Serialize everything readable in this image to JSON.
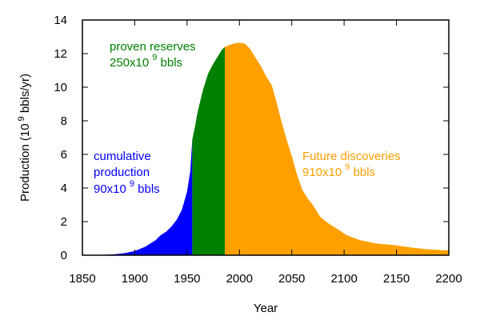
{
  "chart_data": {
    "type": "area",
    "xlabel": "Year",
    "ylabel_prefix": "Production (10",
    "ylabel_sup": "9",
    "ylabel_suffix": " bbls/yr)",
    "xlim": [
      1850,
      2200
    ],
    "ylim": [
      0,
      14
    ],
    "xticks": [
      1850,
      1900,
      1950,
      2000,
      2050,
      2100,
      2150,
      2200
    ],
    "yticks": [
      0,
      2,
      4,
      6,
      8,
      10,
      12,
      14
    ],
    "grid": false,
    "curve": {
      "x": [
        1850,
        1860,
        1870,
        1880,
        1890,
        1900,
        1910,
        1920,
        1925,
        1930,
        1935,
        1940,
        1945,
        1950,
        1953,
        1955,
        1958,
        1960,
        1965,
        1970,
        1975,
        1980,
        1983,
        1986,
        1990,
        1995,
        2000,
        2005,
        2010,
        2015,
        2021,
        2025,
        2031,
        2035,
        2040,
        2045,
        2050,
        2055,
        2060,
        2065,
        2070,
        2077,
        2085,
        2095,
        2102,
        2115,
        2130,
        2148,
        2165,
        2180,
        2200
      ],
      "y": [
        0,
        0,
        0.02,
        0.05,
        0.12,
        0.25,
        0.5,
        0.9,
        1.2,
        1.4,
        1.7,
        2.1,
        2.7,
        3.8,
        5.0,
        6.9,
        7.8,
        8.5,
        9.8,
        10.8,
        11.4,
        11.9,
        12.2,
        12.4,
        12.5,
        12.6,
        12.65,
        12.6,
        12.3,
        11.8,
        11.2,
        10.7,
        10.1,
        9.2,
        8.0,
        6.9,
        5.9,
        4.8,
        3.9,
        3.4,
        3.0,
        2.3,
        1.9,
        1.5,
        1.2,
        0.9,
        0.7,
        0.6,
        0.45,
        0.35,
        0.28
      ]
    },
    "regions": [
      {
        "name": "cumulative production",
        "from": 1850,
        "to": 1955,
        "color": "#0000ff",
        "label_lines": [
          "cumulative",
          "production"
        ],
        "amount": "90x10",
        "sup": "9",
        "unit": " bbls"
      },
      {
        "name": "proven reserves",
        "from": 1955,
        "to": 1986,
        "color": "#008000",
        "label_lines": [
          "proven reserves"
        ],
        "amount": "250x10",
        "sup": "9",
        "unit": " bbls"
      },
      {
        "name": "Future discoveries",
        "from": 1986,
        "to": 2200,
        "color": "#ffa000",
        "label_lines": [
          "Future discoveries"
        ],
        "amount": "910x10",
        "sup": "9",
        "unit": " bbls"
      }
    ]
  }
}
